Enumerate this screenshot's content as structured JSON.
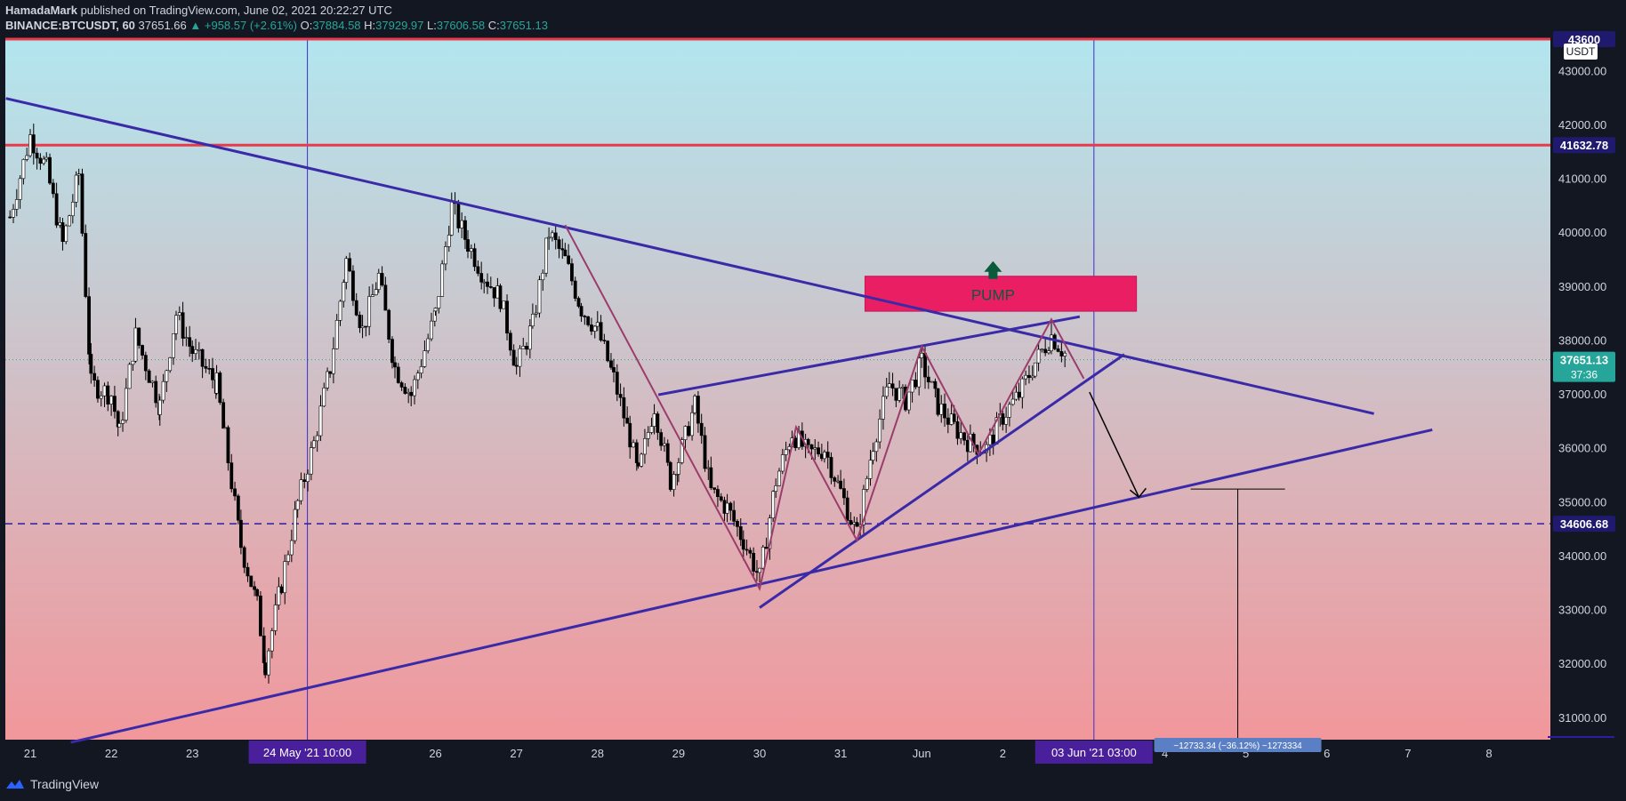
{
  "header": {
    "author": "HamadaMark",
    "published_text": "published on TradingView.com, June 02, 2021 20:22:27 UTC",
    "symbol": "BINANCE:BTCUSDT, 60",
    "last": "37651.66",
    "change": "▲ +958.57 (+2.61%)",
    "o_label": "O:",
    "o": "37884.58",
    "h_label": "H:",
    "h": "37929.97",
    "l_label": "L:",
    "l": "37606.58",
    "c_label": "C:",
    "c": "37651.13"
  },
  "footer": {
    "brand": "TradingView"
  },
  "colors": {
    "background": "#131722",
    "gradient_top": "#b2e6ef",
    "gradient_bottom": "#f1979b",
    "trendline": "#3a2aa8",
    "zigzag": "#9b3c6a",
    "resistance": "#e83a4a",
    "supply_zone": "#e91e63",
    "pump": "#0b5a3c",
    "up_candle": "#ffffff",
    "down_candle": "#000000"
  },
  "chart_data": {
    "type": "candlestick",
    "currency": "USDT",
    "ylim": [
      30600,
      43600
    ],
    "y_ticks": [
      "43000.00",
      "42000.00",
      "41000.00",
      "40000.00",
      "39000.00",
      "38000.00",
      "37000.00",
      "36000.00",
      "35000.00",
      "34000.00",
      "33000.00",
      "32000.00",
      "31000.00"
    ],
    "y_tick_values": [
      43000,
      42000,
      41000,
      40000,
      39000,
      38000,
      37000,
      36000,
      35000,
      34000,
      33000,
      32000,
      31000
    ],
    "x_ticks": [
      {
        "label": "21",
        "day": 21
      },
      {
        "label": "22",
        "day": 22
      },
      {
        "label": "23",
        "day": 23
      },
      {
        "label": "26",
        "day": 26
      },
      {
        "label": "27",
        "day": 27
      },
      {
        "label": "28",
        "day": 28
      },
      {
        "label": "29",
        "day": 29
      },
      {
        "label": "30",
        "day": 30
      },
      {
        "label": "31",
        "day": 31
      },
      {
        "label": "Jun",
        "day": 32
      },
      {
        "label": "2",
        "day": 33
      },
      {
        "label": "4",
        "day": 35
      },
      {
        "label": "5",
        "day": 36
      },
      {
        "label": "6",
        "day": 37
      },
      {
        "label": "7",
        "day": 38
      },
      {
        "label": "8",
        "day": 39
      }
    ],
    "x_range_days": [
      20.7,
      40.0
    ],
    "highlighted_dates": [
      {
        "label": "24 May '21   10:00",
        "day": 24.42
      },
      {
        "label": "03 Jun '21   03:00",
        "day": 34.125
      }
    ],
    "price_labels": [
      {
        "text": "43600",
        "value": 43600
      },
      {
        "text": "41632.78",
        "value": 41632.78
      },
      {
        "text": "37651.13",
        "value": 37651.13,
        "sub": "37:36"
      },
      {
        "text": "34606.68",
        "value": 34606.68
      }
    ],
    "horizontal_levels": [
      {
        "value": 43600,
        "style": "solid",
        "color": "red"
      },
      {
        "value": 41632.78,
        "style": "solid",
        "color": "red"
      },
      {
        "value": 34606.68,
        "style": "dashed",
        "color": "navy"
      }
    ],
    "last_price": 37651.13,
    "candles_close_path": [
      {
        "day": 20.75,
        "price": 40300
      },
      {
        "day": 21.0,
        "price": 41800
      },
      {
        "day": 21.2,
        "price": 41200
      },
      {
        "day": 21.4,
        "price": 39800
      },
      {
        "day": 21.6,
        "price": 41100
      },
      {
        "day": 21.75,
        "price": 37200
      },
      {
        "day": 22.0,
        "price": 37000
      },
      {
        "day": 22.1,
        "price": 36300
      },
      {
        "day": 22.3,
        "price": 38100
      },
      {
        "day": 22.6,
        "price": 36800
      },
      {
        "day": 22.8,
        "price": 38500
      },
      {
        "day": 23.0,
        "price": 37800
      },
      {
        "day": 23.3,
        "price": 37200
      },
      {
        "day": 23.4,
        "price": 36200
      },
      {
        "day": 23.6,
        "price": 34200
      },
      {
        "day": 23.8,
        "price": 33100
      },
      {
        "day": 23.9,
        "price": 32000
      },
      {
        "day": 24.1,
        "price": 33500
      },
      {
        "day": 24.3,
        "price": 35000
      },
      {
        "day": 24.5,
        "price": 36100
      },
      {
        "day": 24.7,
        "price": 37500
      },
      {
        "day": 24.9,
        "price": 39500
      },
      {
        "day": 25.1,
        "price": 38200
      },
      {
        "day": 25.3,
        "price": 39200
      },
      {
        "day": 25.5,
        "price": 37500
      },
      {
        "day": 25.7,
        "price": 37000
      },
      {
        "day": 26.0,
        "price": 38500
      },
      {
        "day": 26.2,
        "price": 40500
      },
      {
        "day": 26.4,
        "price": 39800
      },
      {
        "day": 26.6,
        "price": 39200
      },
      {
        "day": 26.8,
        "price": 38800
      },
      {
        "day": 27.0,
        "price": 37500
      },
      {
        "day": 27.2,
        "price": 38300
      },
      {
        "day": 27.4,
        "price": 40000
      },
      {
        "day": 27.6,
        "price": 39500
      },
      {
        "day": 27.8,
        "price": 38600
      },
      {
        "day": 28.0,
        "price": 38200
      },
      {
        "day": 28.2,
        "price": 37300
      },
      {
        "day": 28.4,
        "price": 36200
      },
      {
        "day": 28.5,
        "price": 35500
      },
      {
        "day": 28.7,
        "price": 36800
      },
      {
        "day": 28.9,
        "price": 35400
      },
      {
        "day": 29.0,
        "price": 35800
      },
      {
        "day": 29.2,
        "price": 36800
      },
      {
        "day": 29.4,
        "price": 35200
      },
      {
        "day": 29.6,
        "price": 34900
      },
      {
        "day": 29.8,
        "price": 34300
      },
      {
        "day": 30.0,
        "price": 33600
      },
      {
        "day": 30.2,
        "price": 35400
      },
      {
        "day": 30.4,
        "price": 36300
      },
      {
        "day": 30.6,
        "price": 35900
      },
      {
        "day": 30.8,
        "price": 36000
      },
      {
        "day": 31.0,
        "price": 35200
      },
      {
        "day": 31.2,
        "price": 34400
      },
      {
        "day": 31.4,
        "price": 36100
      },
      {
        "day": 31.6,
        "price": 37200
      },
      {
        "day": 31.8,
        "price": 36900
      },
      {
        "day": 32.0,
        "price": 37600
      },
      {
        "day": 32.2,
        "price": 36800
      },
      {
        "day": 32.4,
        "price": 36400
      },
      {
        "day": 32.6,
        "price": 36100
      },
      {
        "day": 32.8,
        "price": 36000
      },
      {
        "day": 33.0,
        "price": 36600
      },
      {
        "day": 33.2,
        "price": 37000
      },
      {
        "day": 33.4,
        "price": 37600
      },
      {
        "day": 33.6,
        "price": 38100
      },
      {
        "day": 33.8,
        "price": 37700
      }
    ],
    "trendlines": [
      {
        "name": "descending-resistance",
        "from": {
          "day": 20.7,
          "price": 42500
        },
        "to": {
          "day": 37.58,
          "price": 36650
        }
      },
      {
        "name": "long-support",
        "from": {
          "day": 21.5,
          "price": 30550
        },
        "to": {
          "day": 38.3,
          "price": 36350
        }
      },
      {
        "name": "channel-upper",
        "from": {
          "day": 28.75,
          "price": 37000
        },
        "to": {
          "day": 33.95,
          "price": 38450
        }
      },
      {
        "name": "channel-lower",
        "from": {
          "day": 30.0,
          "price": 33050
        },
        "to": {
          "day": 34.5,
          "price": 37750
        }
      }
    ],
    "zigzag": [
      {
        "day": 27.6,
        "price": 40150
      },
      {
        "day": 30.0,
        "price": 33400
      },
      {
        "day": 30.45,
        "price": 36400
      },
      {
        "day": 31.2,
        "price": 34300
      },
      {
        "day": 32.0,
        "price": 37900
      },
      {
        "day": 32.7,
        "price": 35900
      },
      {
        "day": 33.6,
        "price": 38400
      },
      {
        "day": 34.0,
        "price": 37300
      }
    ],
    "supply_zone": {
      "day_from": 31.3,
      "day_to": 34.65,
      "price_from": 38550,
      "price_to": 39200
    },
    "annotation": {
      "text": "PUMP",
      "day": 32.88,
      "price": 39150
    },
    "projection_arrow": {
      "from": {
        "day": 34.07,
        "price": 37050
      },
      "to": {
        "day": 34.68,
        "price": 35100
      }
    },
    "measure": {
      "day": 35.9,
      "price_top": 35250,
      "price_bottom": 30700,
      "label": "−12733.34 (−36.12%) −1273334"
    }
  }
}
